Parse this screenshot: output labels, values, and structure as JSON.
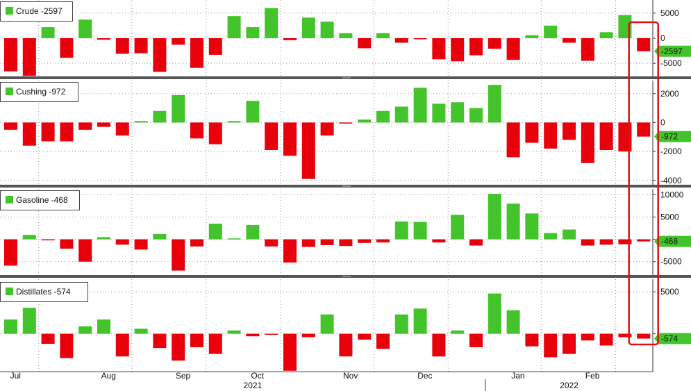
{
  "chart_data": [
    {
      "type": "bar",
      "panel": "crude",
      "legend_label": "Crude -2597",
      "latest_value_label": "-2597",
      "ylim": [
        -7600,
        7600
      ],
      "yticks": [
        5000,
        0,
        -5000
      ],
      "ytick_labels": [
        "5000",
        "0",
        "-5000"
      ],
      "values": [
        -6600,
        -7500,
        2200,
        -3900,
        3700,
        -300,
        -3100,
        -3000,
        -6700,
        -1300,
        -5900,
        -3300,
        4400,
        2200,
        6000,
        -400,
        4100,
        3300,
        1000,
        -2000,
        1000,
        -900,
        -200,
        -4200,
        -4600,
        -3400,
        -2100,
        -4300,
        600,
        2500,
        -900,
        -4500,
        1200,
        4600,
        -2597
      ],
      "colors": {
        "positive": "#44c42b",
        "negative": "#e8000b"
      }
    },
    {
      "type": "bar",
      "panel": "cushing",
      "legend_label": "Cushing -972",
      "latest_value_label": "-972",
      "ylim": [
        -4300,
        2900
      ],
      "yticks": [
        2000,
        0,
        -2000,
        -4000
      ],
      "ytick_labels": [
        "2000",
        "0",
        "-2000",
        "-4000"
      ],
      "values": [
        -500,
        -1600,
        -1300,
        -1300,
        -500,
        -300,
        -900,
        100,
        800,
        1900,
        -1100,
        -1500,
        100,
        1500,
        -1900,
        -2300,
        -3900,
        -900,
        -50,
        200,
        800,
        1100,
        2400,
        1300,
        1400,
        1000,
        2600,
        -2400,
        -1400,
        -1800,
        -1200,
        -2800,
        -1900,
        -2000,
        -972
      ],
      "colors": {
        "positive": "#44c42b",
        "negative": "#e8000b"
      }
    },
    {
      "type": "bar",
      "panel": "gasoline",
      "legend_label": "Gasoline -468",
      "latest_value_label": "-468",
      "ylim": [
        -8000,
        11300
      ],
      "yticks": [
        10000,
        5000,
        0,
        -5000
      ],
      "ytick_labels": [
        "10000",
        "5000",
        "0",
        "-5000"
      ],
      "values": [
        -5900,
        1000,
        -200,
        -2100,
        -5000,
        500,
        -1200,
        -2300,
        1200,
        -7000,
        -1600,
        3500,
        200,
        3200,
        -1600,
        -5200,
        -1700,
        -1300,
        -1500,
        -800,
        -700,
        4000,
        3900,
        -700,
        5500,
        -1400,
        10200,
        8000,
        5800,
        1400,
        2200,
        -1400,
        -1200,
        -1100,
        -468
      ],
      "colors": {
        "positive": "#44c42b",
        "negative": "#e8000b"
      }
    },
    {
      "type": "bar",
      "panel": "distillates",
      "legend_label": "Distillates -574",
      "latest_value_label": "-574",
      "ylim": [
        -4500,
        6500
      ],
      "yticks": [
        5000,
        0
      ],
      "ytick_labels": [
        "5000",
        ""
      ],
      "values": [
        1700,
        3100,
        -1200,
        -2900,
        900,
        1700,
        -2700,
        600,
        -1700,
        -3200,
        -1600,
        -2400,
        400,
        -300,
        -100,
        -4400,
        -400,
        2300,
        -2700,
        -700,
        -1800,
        2300,
        3000,
        -2700,
        400,
        -1600,
        4800,
        2800,
        -1500,
        -2800,
        -2400,
        -800,
        -1400,
        -400,
        -574
      ],
      "colors": {
        "positive": "#44c42b",
        "negative": "#e8000b"
      }
    }
  ],
  "x_axis": {
    "months": [
      "Jul",
      "Aug",
      "Sep",
      "Oct",
      "Nov",
      "Dec",
      "Jan",
      "Feb"
    ],
    "month_bar_index": [
      1,
      6,
      10,
      14,
      19,
      23,
      28,
      32
    ],
    "year_labels": [
      "2021",
      "2022"
    ],
    "year_bar_index": [
      13,
      30
    ],
    "year_separator_after_bar": 25
  },
  "highlight": {
    "color": "#e01010",
    "bar_index": 34
  }
}
